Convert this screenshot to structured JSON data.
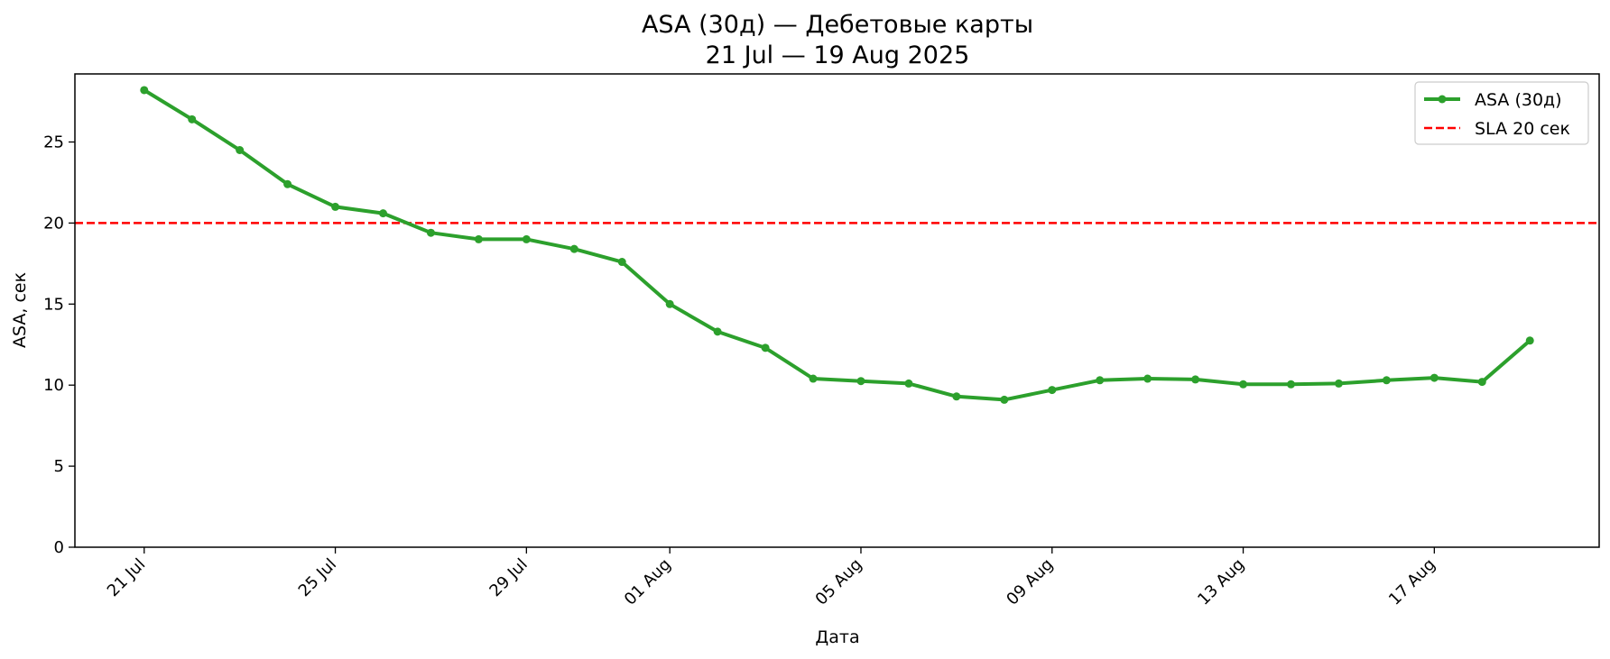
{
  "chart_data": {
    "type": "line",
    "title": "ASA (30д) — Дебетовые карты",
    "subtitle": "21 Jul — 19 Aug 2025",
    "xlabel": "Дата",
    "ylabel": "ASA, сек",
    "ylim": [
      0,
      29.2
    ],
    "yticks": [
      0,
      5,
      10,
      15,
      20,
      25
    ],
    "x_range_days": [
      -1.45,
      30.45
    ],
    "xticks": [
      {
        "day": 0,
        "label": "21 Jul"
      },
      {
        "day": 4,
        "label": "25 Jul"
      },
      {
        "day": 8,
        "label": "29 Jul"
      },
      {
        "day": 11,
        "label": "01 Aug"
      },
      {
        "day": 15,
        "label": "05 Aug"
      },
      {
        "day": 19,
        "label": "09 Aug"
      },
      {
        "day": 23,
        "label": "13 Aug"
      },
      {
        "day": 27,
        "label": "17 Aug"
      }
    ],
    "grid": false,
    "legend_position": "top-right",
    "series": [
      {
        "name": "ASA (30д)",
        "color": "#2ca02c",
        "x": [
          0,
          1,
          2,
          3,
          4,
          5,
          6,
          7,
          8,
          9,
          10,
          11,
          12,
          13,
          14,
          15,
          16,
          17,
          18,
          19,
          20,
          21,
          22,
          23,
          24,
          25,
          26,
          27,
          28,
          29
        ],
        "values": [
          28.2,
          26.4,
          24.5,
          22.4,
          21.0,
          20.6,
          19.4,
          19.0,
          19.0,
          18.4,
          17.6,
          15.0,
          13.3,
          12.3,
          10.4,
          10.25,
          10.1,
          9.3,
          9.1,
          9.7,
          10.3,
          10.4,
          10.35,
          10.05,
          10.05,
          10.1,
          10.3,
          10.45,
          10.2,
          12.75
        ]
      }
    ],
    "reference_lines": [
      {
        "name": "SLA 20 сек",
        "y": 20,
        "color": "#ff0000",
        "style": "dashed"
      }
    ]
  }
}
